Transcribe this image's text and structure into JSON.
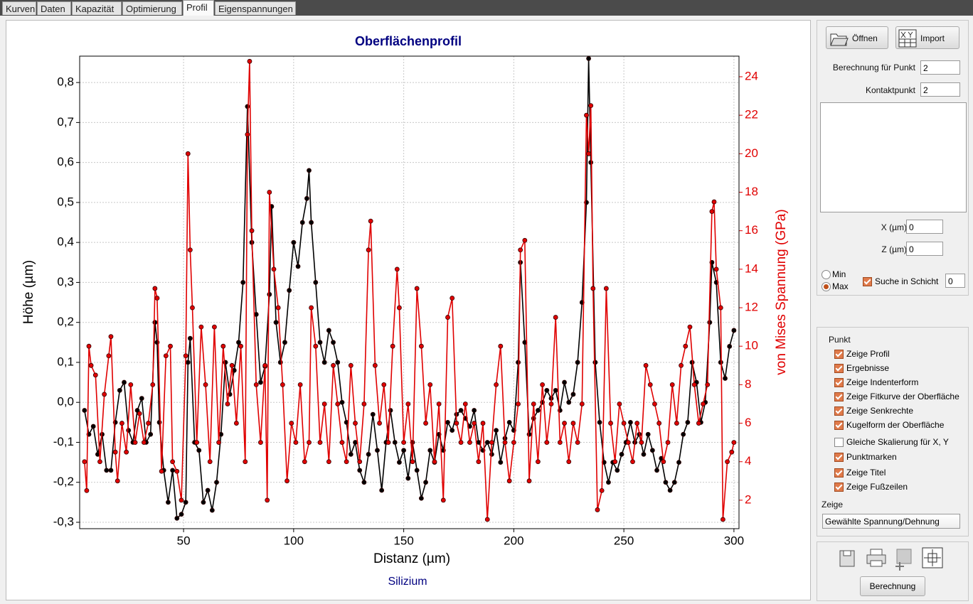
{
  "tabs": [
    "Kurven",
    "Daten",
    "Kapazität",
    "Optimierung",
    "Profil",
    "Eigenspannungen"
  ],
  "chart_data": {
    "type": "line",
    "title": "Oberflächenprofil",
    "x_label": "Distanz (µm)",
    "y_label": "Höhe (µm)",
    "y2_label": "von Mises Spannung (GPa)",
    "footer": "Silizium",
    "grid": true,
    "xlim": [
      2.8,
      302.3
    ],
    "ylim": [
      -0.316,
      0.866
    ],
    "y2lim": [
      0.52,
      25.07
    ],
    "xticks": [
      50,
      100,
      150,
      200,
      250,
      300
    ],
    "yticks": [
      {
        "value": -0.3,
        "label": "-0,3"
      },
      {
        "value": -0.2,
        "label": "-0,2"
      },
      {
        "value": -0.1,
        "label": "-0,1"
      },
      {
        "value": 0,
        "label": "0,0"
      },
      {
        "value": 0.1,
        "label": "0,1"
      },
      {
        "value": 0.2,
        "label": "0,2"
      },
      {
        "value": 0.3,
        "label": "0,3"
      },
      {
        "value": 0.4,
        "label": "0,4"
      },
      {
        "value": 0.5,
        "label": "0,5"
      },
      {
        "value": 0.6,
        "label": "0,6"
      },
      {
        "value": 0.7,
        "label": "0,7"
      },
      {
        "value": 0.8,
        "label": "0,8"
      }
    ],
    "y2ticks": [
      2,
      4,
      6,
      8,
      10,
      12,
      14,
      16,
      18,
      20,
      22,
      24
    ],
    "series": [
      {
        "color": "#000000",
        "axis": "y",
        "x": [
          5,
          7,
          9,
          11,
          13,
          15,
          17,
          19,
          21,
          23,
          25,
          27,
          29,
          31,
          33,
          35,
          37,
          38,
          39,
          41,
          43,
          45,
          47,
          49,
          51,
          52,
          53,
          55,
          57,
          59,
          61,
          63,
          65,
          67,
          69,
          71,
          73,
          75,
          77,
          79,
          81,
          83,
          85,
          87,
          89,
          90,
          92,
          94,
          96,
          98,
          100,
          102,
          104,
          106,
          107,
          108,
          110,
          112,
          114,
          116,
          118,
          120,
          122,
          124,
          126,
          128,
          130,
          132,
          134,
          136,
          138,
          140,
          142,
          144,
          146,
          148,
          150,
          152,
          154,
          156,
          158,
          160,
          162,
          164,
          166,
          168,
          170,
          172,
          174,
          176,
          178,
          180,
          182,
          184,
          186,
          188,
          190,
          192,
          194,
          196,
          198,
          200,
          202,
          203,
          205,
          207,
          209,
          211,
          213,
          215,
          217,
          219,
          221,
          223,
          225,
          227,
          229,
          231,
          233,
          234,
          235,
          237,
          239,
          241,
          243,
          245,
          247,
          249,
          251,
          253,
          255,
          257,
          259,
          261,
          263,
          265,
          267,
          269,
          271,
          273,
          275,
          277,
          279,
          281,
          283,
          285,
          287,
          289,
          290,
          292,
          294,
          296,
          298,
          300
        ],
        "values": [
          -0.02,
          -0.08,
          -0.06,
          -0.13,
          -0.08,
          -0.17,
          -0.17,
          -0.05,
          0.03,
          0.05,
          -0.07,
          -0.1,
          -0.02,
          0.01,
          -0.1,
          -0.08,
          0.2,
          0.15,
          -0.05,
          -0.17,
          -0.25,
          -0.17,
          -0.29,
          -0.28,
          -0.25,
          0.1,
          0.16,
          -0.1,
          -0.12,
          -0.25,
          -0.22,
          -0.27,
          -0.2,
          -0.08,
          0.1,
          0.02,
          0.08,
          0.15,
          0.3,
          0.74,
          0.4,
          0.22,
          0.05,
          0.09,
          0.27,
          0.49,
          0.2,
          0.1,
          0.15,
          0.28,
          0.4,
          0.34,
          0.45,
          0.51,
          0.58,
          0.45,
          0.3,
          0.15,
          0.1,
          0.18,
          0.15,
          0.1,
          0,
          -0.05,
          -0.13,
          -0.1,
          -0.17,
          -0.2,
          -0.13,
          -0.03,
          -0.12,
          -0.22,
          -0.1,
          -0.02,
          -0.1,
          -0.15,
          -0.12,
          -0.19,
          -0.1,
          -0.17,
          -0.24,
          -0.2,
          -0.12,
          -0.15,
          -0.08,
          -0.12,
          -0.05,
          -0.07,
          -0.03,
          -0.02,
          -0.04,
          -0.06,
          -0.02,
          -0.1,
          -0.12,
          -0.1,
          -0.13,
          -0.07,
          -0.15,
          -0.09,
          -0.05,
          -0.07,
          0.1,
          0.35,
          0.15,
          -0.08,
          -0.04,
          -0.02,
          0,
          0.03,
          0.01,
          0.03,
          -0.02,
          0.05,
          0,
          0.02,
          0.1,
          0.25,
          0.5,
          0.86,
          0.6,
          0.1,
          -0.05,
          -0.15,
          -0.2,
          -0.15,
          -0.17,
          -0.13,
          -0.1,
          -0.05,
          -0.1,
          -0.08,
          -0.13,
          -0.08,
          -0.12,
          -0.17,
          -0.14,
          -0.2,
          -0.22,
          -0.2,
          -0.15,
          -0.08,
          -0.05,
          0.1,
          0.05,
          -0.05,
          0,
          0.2,
          0.35,
          0.3,
          0.1,
          0.06,
          0.14,
          0.18
        ]
      },
      {
        "color": "#e00000",
        "axis": "y2",
        "x": [
          5,
          6,
          7,
          8,
          10,
          12,
          14,
          16,
          17,
          19,
          20,
          22,
          24,
          26,
          28,
          30,
          32,
          34,
          36,
          37,
          38,
          40,
          42,
          44,
          45,
          47,
          49,
          51,
          52,
          53,
          54,
          56,
          58,
          60,
          62,
          64,
          66,
          68,
          70,
          72,
          74,
          76,
          78,
          79,
          80,
          81,
          83,
          85,
          87,
          88,
          89,
          91,
          93,
          95,
          97,
          99,
          101,
          103,
          105,
          107,
          108,
          110,
          112,
          114,
          116,
          118,
          120,
          122,
          124,
          126,
          128,
          130,
          132,
          134,
          135,
          137,
          139,
          141,
          143,
          145,
          147,
          148,
          150,
          152,
          154,
          156,
          158,
          160,
          162,
          164,
          166,
          168,
          170,
          172,
          174,
          176,
          178,
          180,
          182,
          184,
          186,
          188,
          190,
          192,
          194,
          196,
          198,
          200,
          202,
          203,
          205,
          207,
          209,
          211,
          213,
          215,
          217,
          219,
          221,
          223,
          225,
          227,
          229,
          231,
          233,
          234,
          235,
          236,
          238,
          240,
          242,
          244,
          246,
          248,
          250,
          252,
          254,
          256,
          258,
          260,
          262,
          264,
          266,
          268,
          270,
          272,
          274,
          276,
          278,
          280,
          282,
          284,
          286,
          288,
          290,
          291,
          292,
          294,
          295,
          297,
          299,
          300
        ],
        "values": [
          4,
          2.5,
          10,
          9,
          8.5,
          4,
          7.5,
          9.5,
          10.5,
          4.5,
          3,
          6,
          4.5,
          8,
          5,
          6.5,
          5,
          6,
          8,
          13,
          12.5,
          3.5,
          9.5,
          10,
          4,
          3.5,
          2,
          9.5,
          20,
          15,
          12,
          5,
          11,
          8,
          4,
          11,
          5,
          10,
          7,
          9,
          6,
          10,
          4,
          21,
          24.8,
          16,
          8,
          5,
          9,
          2,
          18,
          14,
          12,
          8,
          3,
          6,
          5,
          8,
          4,
          5,
          12,
          10,
          5,
          7,
          4,
          9,
          7,
          5,
          4,
          9,
          6,
          4,
          7,
          15,
          16.5,
          9,
          6,
          8,
          5,
          10,
          14,
          12,
          5,
          7,
          4,
          13,
          10,
          6,
          8,
          4,
          7,
          2,
          11.5,
          12.5,
          6,
          5,
          7,
          5,
          6,
          4,
          6,
          1,
          5,
          8,
          10,
          5,
          3,
          5,
          7,
          15,
          15.5,
          3,
          7,
          4,
          8,
          5,
          7,
          11.5,
          5,
          6,
          4,
          6,
          5,
          7,
          22,
          20,
          22.5,
          13,
          1.5,
          2.5,
          13,
          6,
          4,
          7,
          6,
          5,
          4,
          6,
          5,
          9,
          8,
          7,
          6,
          4,
          5,
          8,
          6,
          9,
          10,
          11,
          8,
          6,
          7,
          8,
          17,
          17.5,
          14,
          12,
          1,
          4,
          4.5,
          5
        ]
      }
    ]
  },
  "panel": {
    "open": "Öffnen",
    "import": "Import",
    "calc_point_label": "Berechnung für Punkt",
    "calc_point": 2,
    "contact_label": "Kontaktpunkt",
    "contact": 2,
    "x_label": "X (µm)",
    "x": 0,
    "z_label": "Z (µm)",
    "z": 0,
    "radios": [
      {
        "label": "Min",
        "checked": false
      },
      {
        "label": "Max",
        "checked": true
      }
    ],
    "search": {
      "label": "Suche in Schicht",
      "checked": true,
      "value": 0
    },
    "group_title": "Punkt",
    "checks": [
      {
        "label": "Zeige Profil",
        "checked": true
      },
      {
        "label": "Ergebnisse",
        "checked": true
      },
      {
        "label": "Zeige Indenterform",
        "checked": true
      },
      {
        "label": "Zeige Fitkurve der Oberfläche",
        "checked": true
      },
      {
        "label": "Zeige Senkrechte",
        "checked": true
      },
      {
        "label": "Kugelform der Oberfläche",
        "checked": true
      },
      {
        "label": "Gleiche Skalierung für X, Y",
        "checked": false
      },
      {
        "label": "Punktmarken",
        "checked": true
      },
      {
        "label": "Zeige Titel",
        "checked": true
      },
      {
        "label": "Zeige Fußzeilen",
        "checked": true
      }
    ],
    "show_label": "Zeige",
    "show_value": "Gewählte Spannung/Dehnung",
    "calc_button": "Berechnung"
  }
}
